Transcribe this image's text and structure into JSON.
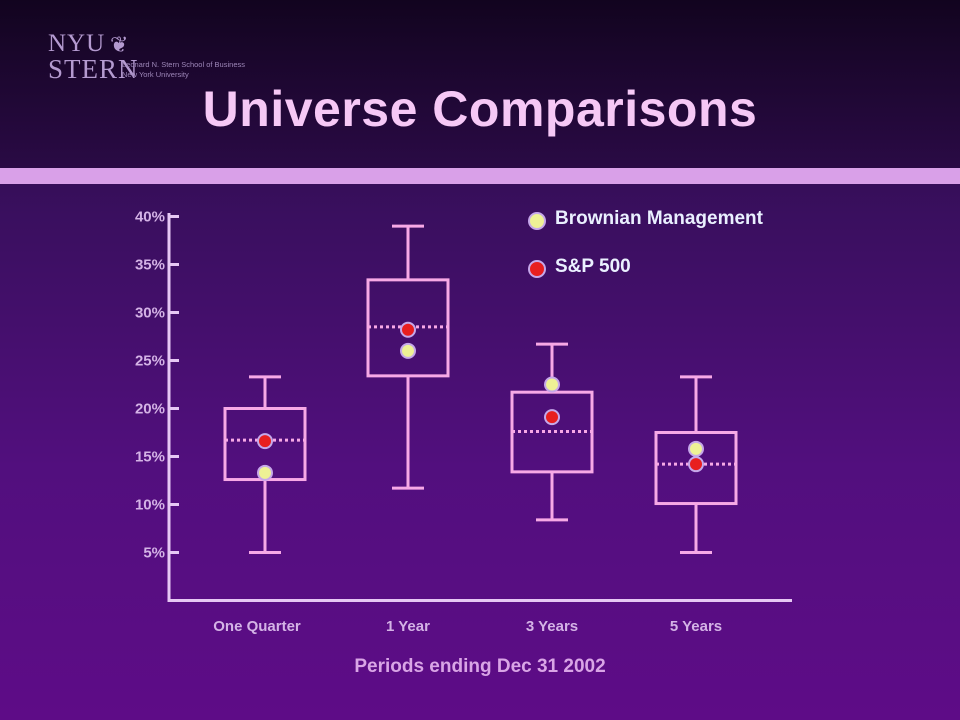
{
  "header": {
    "logo": {
      "nyu": "NYU",
      "stern": "STERN",
      "line1": "Leonard N. Stern School of Business",
      "line2": "New York University"
    },
    "title": "Universe Comparisons"
  },
  "colors": {
    "box": "#f7a9e6",
    "brownian_marker": "#eef295",
    "sp500_marker": "#e81f1f",
    "marker_outline": "#c6a8ea"
  },
  "chart_data": {
    "type": "box",
    "xlabel": "Periods ending Dec 31 2002",
    "ylabel": "",
    "ylim": [
      0,
      40
    ],
    "yticks": [
      5,
      10,
      15,
      20,
      25,
      30,
      35,
      40
    ],
    "ytick_labels": [
      "5%",
      "10%",
      "15%",
      "20%",
      "25%",
      "30%",
      "35%",
      "40%"
    ],
    "categories": [
      "One Quarter",
      "1 Year",
      "3 Years",
      "5 Years"
    ],
    "boxes": [
      {
        "whisker_high": 23.3,
        "q3": 20.0,
        "median": 16.7,
        "q1": 12.6,
        "whisker_low": 5.0
      },
      {
        "whisker_high": 39.0,
        "q3": 33.4,
        "median": 28.5,
        "q1": 23.4,
        "whisker_low": 11.7
      },
      {
        "whisker_high": 26.7,
        "q3": 21.7,
        "median": 17.6,
        "q1": 13.4,
        "whisker_low": 8.4
      },
      {
        "whisker_high": 23.3,
        "q3": 17.5,
        "median": 14.2,
        "q1": 10.1,
        "whisker_low": 5.0
      }
    ],
    "series": [
      {
        "name": "Brownian Management",
        "values": [
          13.3,
          26.0,
          22.5,
          15.8
        ]
      },
      {
        "name": "S&P 500",
        "values": [
          16.6,
          28.2,
          19.1,
          14.2
        ]
      }
    ],
    "legend_position": "top-right",
    "grid": false
  }
}
